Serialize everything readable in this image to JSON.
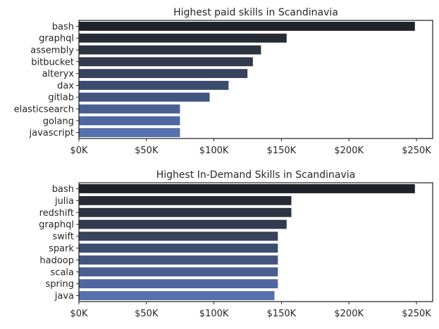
{
  "chart_data": [
    {
      "type": "bar",
      "orientation": "horizontal",
      "title": "Highest paid skills in Scandinavia",
      "xlabel": "",
      "ylabel": "",
      "categories": [
        "bash",
        "graphql",
        "assembly",
        "bitbucket",
        "alteryx",
        "dax",
        "gitlab",
        "elasticsearch",
        "golang",
        "javascript"
      ],
      "values": [
        249000,
        154000,
        135000,
        129000,
        125000,
        111000,
        97000,
        75000,
        75000,
        75000
      ],
      "xlim": [
        0,
        262000
      ],
      "xticks": [
        0,
        50000,
        100000,
        150000,
        200000,
        250000
      ],
      "xtick_labels": [
        "$0K",
        "$50K",
        "$100K",
        "$150K",
        "$200K",
        "$250K"
      ],
      "grid": false,
      "colors": [
        "#1f232a",
        "#262b36",
        "#2c3341",
        "#313a4e",
        "#37435d",
        "#3c4c6e",
        "#43557f",
        "#4a5f91",
        "#4f67a1",
        "#5672ae"
      ]
    },
    {
      "type": "bar",
      "orientation": "horizontal",
      "title": "Highest In-Demand Skills in Scandinavia",
      "xlabel": "",
      "ylabel": "",
      "categories": [
        "bash",
        "julia",
        "redshift",
        "graphql",
        "swift",
        "spark",
        "hadoop",
        "scala",
        "spring",
        "java"
      ],
      "values": [
        249000,
        157500,
        157500,
        154000,
        147500,
        147500,
        147500,
        147500,
        147500,
        145000
      ],
      "xlim": [
        0,
        262000
      ],
      "xticks": [
        0,
        50000,
        100000,
        150000,
        200000,
        250000
      ],
      "xtick_labels": [
        "$0K",
        "$50K",
        "$100K",
        "$150K",
        "$200K",
        "$250K"
      ],
      "grid": false,
      "colors": [
        "#1f232a",
        "#262b36",
        "#2c3341",
        "#313a4e",
        "#37435d",
        "#3c4c6e",
        "#43557f",
        "#4a5f91",
        "#4f67a1",
        "#5672ae"
      ]
    }
  ]
}
